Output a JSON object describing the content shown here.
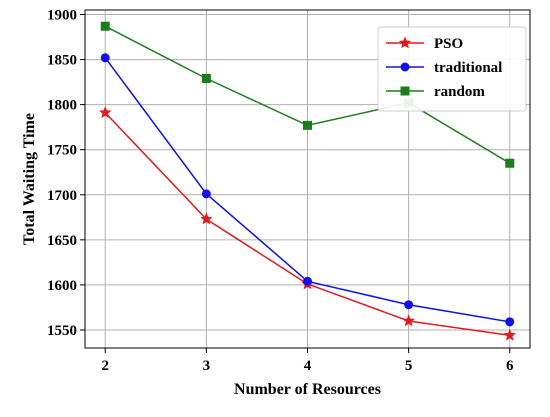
{
  "chart_data": {
    "type": "line",
    "title": "",
    "xlabel": "Number of Resources",
    "ylabel": "Total Waiting Time",
    "x": [
      2,
      3,
      4,
      5,
      6
    ],
    "xlim": [
      1.8,
      6.2
    ],
    "ylim": [
      1530,
      1905
    ],
    "xticks": [
      2,
      3,
      4,
      5,
      6
    ],
    "yticks": [
      1550,
      1600,
      1650,
      1700,
      1750,
      1800,
      1850,
      1900
    ],
    "grid": true,
    "legend_position": "top-right",
    "series": [
      {
        "name": "PSO",
        "values": [
          1791,
          1673,
          1601,
          1560,
          1544
        ],
        "color": "#e31a1c",
        "marker": "star"
      },
      {
        "name": "traditional",
        "values": [
          1852,
          1701,
          1604,
          1578,
          1559
        ],
        "color": "#1010ee",
        "marker": "circle"
      },
      {
        "name": "random",
        "values": [
          1887,
          1829,
          1777,
          1802,
          1735
        ],
        "color": "#1a7f1a",
        "marker": "square"
      }
    ]
  }
}
